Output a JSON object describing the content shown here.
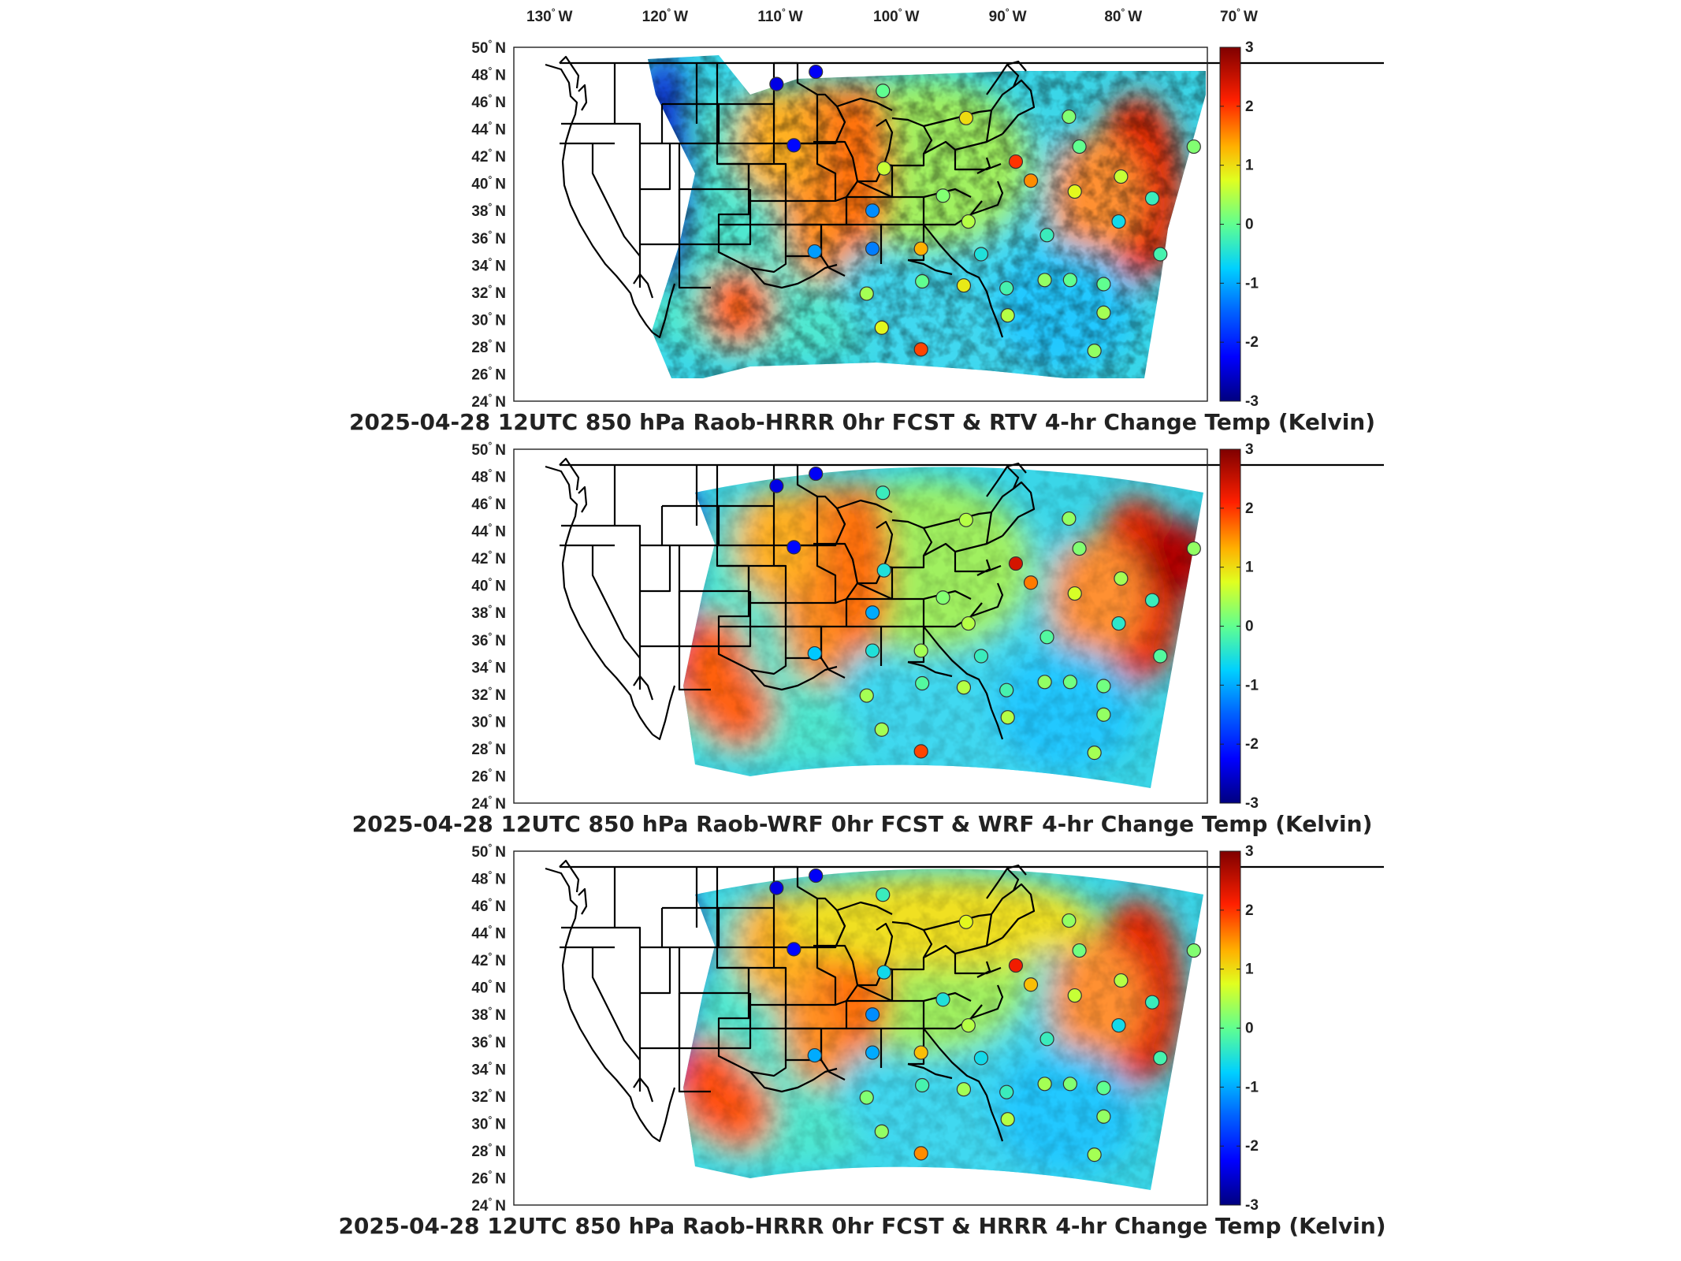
{
  "top_lon_labels": [
    {
      "num": "130",
      "dir": "W"
    },
    {
      "num": "120",
      "dir": "W"
    },
    {
      "num": "110",
      "dir": "W"
    },
    {
      "num": "100",
      "dir": "W"
    },
    {
      "num": "90",
      "dir": "W"
    },
    {
      "num": "80",
      "dir": "W"
    },
    {
      "num": "70",
      "dir": "W"
    }
  ],
  "lat_labels": [
    {
      "num": "50",
      "dir": "N"
    },
    {
      "num": "48",
      "dir": "N"
    },
    {
      "num": "46",
      "dir": "N"
    },
    {
      "num": "44",
      "dir": "N"
    },
    {
      "num": "42",
      "dir": "N"
    },
    {
      "num": "40",
      "dir": "N"
    },
    {
      "num": "38",
      "dir": "N"
    },
    {
      "num": "36",
      "dir": "N"
    },
    {
      "num": "34",
      "dir": "N"
    },
    {
      "num": "32",
      "dir": "N"
    },
    {
      "num": "30",
      "dir": "N"
    },
    {
      "num": "28",
      "dir": "N"
    },
    {
      "num": "26",
      "dir": "N"
    },
    {
      "num": "24",
      "dir": "N"
    }
  ],
  "colorbar": {
    "ticks": [
      "3",
      "2",
      "1",
      "0",
      "-1",
      "-2",
      "-3"
    ],
    "colors": [
      "#00007f",
      "#0000ff",
      "#0080ff",
      "#00ffff",
      "#80ff80",
      "#ffff00",
      "#ff8000",
      "#ff0000",
      "#7f0000"
    ]
  },
  "panels": [
    {
      "title": "2025-04-28 12UTC 850 hPa Raob-HRRR 0hr FCST & RTV 4-hr Change Temp (Kelvin)"
    },
    {
      "title": "2025-04-28 12UTC 850 hPa Raob-WRF 0hr FCST & WRF 4-hr Change Temp (Kelvin)"
    },
    {
      "title": "2025-04-28 12UTC 850 hPa Raob-HRRR 0hr FCST & HRRR 4-hr Change Temp (Kelvin)"
    }
  ],
  "map_data": {
    "value_range": [
      -3,
      3
    ],
    "units": "Kelvin",
    "lon_range": [
      -130,
      -70
    ],
    "lat_range": [
      24,
      50
    ],
    "stations": [
      {
        "lon": -110.0,
        "lat": 47.3,
        "v": [
          -2.4,
          -2.4,
          -2.4
        ]
      },
      {
        "lon": -106.6,
        "lat": 48.2,
        "v": [
          -2.3,
          -2.3,
          -2.3
        ]
      },
      {
        "lon": -100.8,
        "lat": 46.8,
        "v": [
          0.0,
          -0.3,
          -0.3
        ]
      },
      {
        "lon": -108.5,
        "lat": 42.8,
        "v": [
          -2.2,
          -2.2,
          -2.2
        ]
      },
      {
        "lon": -93.6,
        "lat": 44.8,
        "v": [
          1.0,
          0.5,
          0.8
        ]
      },
      {
        "lon": -84.7,
        "lat": 44.9,
        "v": [
          0.2,
          0.3,
          0.3
        ]
      },
      {
        "lon": -89.3,
        "lat": 41.6,
        "v": [
          2.0,
          2.4,
          2.2
        ]
      },
      {
        "lon": -88.0,
        "lat": 40.2,
        "v": [
          1.5,
          1.6,
          1.2
        ]
      },
      {
        "lon": -83.8,
        "lat": 42.7,
        "v": [
          0.0,
          0.2,
          0.1
        ]
      },
      {
        "lon": -73.9,
        "lat": 42.7,
        "v": [
          0.2,
          0.3,
          0.2
        ]
      },
      {
        "lon": -80.2,
        "lat": 40.5,
        "v": [
          0.6,
          0.4,
          0.5
        ]
      },
      {
        "lon": -84.2,
        "lat": 39.4,
        "v": [
          0.8,
          0.7,
          0.6
        ]
      },
      {
        "lon": -100.7,
        "lat": 41.1,
        "v": [
          0.6,
          -0.5,
          -0.6
        ]
      },
      {
        "lon": -101.7,
        "lat": 38.0,
        "v": [
          -1.2,
          -1.0,
          -1.2
        ]
      },
      {
        "lon": -95.6,
        "lat": 39.1,
        "v": [
          0.2,
          0.2,
          -0.5
        ]
      },
      {
        "lon": -93.4,
        "lat": 37.2,
        "v": [
          0.5,
          0.5,
          0.5
        ]
      },
      {
        "lon": -86.6,
        "lat": 36.2,
        "v": [
          -0.3,
          -0.1,
          -0.3
        ]
      },
      {
        "lon": -80.4,
        "lat": 37.2,
        "v": [
          -0.6,
          -0.4,
          -0.6
        ]
      },
      {
        "lon": -77.5,
        "lat": 38.9,
        "v": [
          -0.3,
          -0.3,
          -0.3
        ]
      },
      {
        "lon": -101.7,
        "lat": 35.2,
        "v": [
          -1.3,
          -0.5,
          -1.0
        ]
      },
      {
        "lon": -97.5,
        "lat": 35.2,
        "v": [
          1.3,
          0.4,
          1.2
        ]
      },
      {
        "lon": -92.3,
        "lat": 34.8,
        "v": [
          -0.5,
          -0.3,
          -0.6
        ]
      },
      {
        "lon": -76.8,
        "lat": 34.8,
        "v": [
          -0.2,
          -0.1,
          -0.2
        ]
      },
      {
        "lon": -106.7,
        "lat": 35.0,
        "v": [
          -1.1,
          -0.8,
          -1.0
        ]
      },
      {
        "lon": -97.4,
        "lat": 32.8,
        "v": [
          0.0,
          -0.1,
          -0.2
        ]
      },
      {
        "lon": -102.2,
        "lat": 31.9,
        "v": [
          0.4,
          0.4,
          0.2
        ]
      },
      {
        "lon": -93.8,
        "lat": 32.5,
        "v": [
          0.9,
          0.5,
          0.4
        ]
      },
      {
        "lon": -90.1,
        "lat": 32.3,
        "v": [
          -0.2,
          -0.2,
          -0.3
        ]
      },
      {
        "lon": -86.8,
        "lat": 32.9,
        "v": [
          0.3,
          0.3,
          0.4
        ]
      },
      {
        "lon": -84.6,
        "lat": 32.9,
        "v": [
          0.0,
          0.1,
          0.2
        ]
      },
      {
        "lon": -81.7,
        "lat": 32.6,
        "v": [
          0.0,
          0.1,
          0.0
        ]
      },
      {
        "lon": -100.9,
        "lat": 29.4,
        "v": [
          0.8,
          0.4,
          0.3
        ]
      },
      {
        "lon": -97.5,
        "lat": 27.8,
        "v": [
          1.9,
          1.9,
          1.5
        ]
      },
      {
        "lon": -90.0,
        "lat": 30.3,
        "v": [
          0.5,
          0.5,
          0.5
        ]
      },
      {
        "lon": -81.7,
        "lat": 30.5,
        "v": [
          0.4,
          0.3,
          0.3
        ]
      },
      {
        "lon": -82.5,
        "lat": 27.7,
        "v": [
          0.3,
          0.4,
          0.4
        ]
      }
    ]
  }
}
